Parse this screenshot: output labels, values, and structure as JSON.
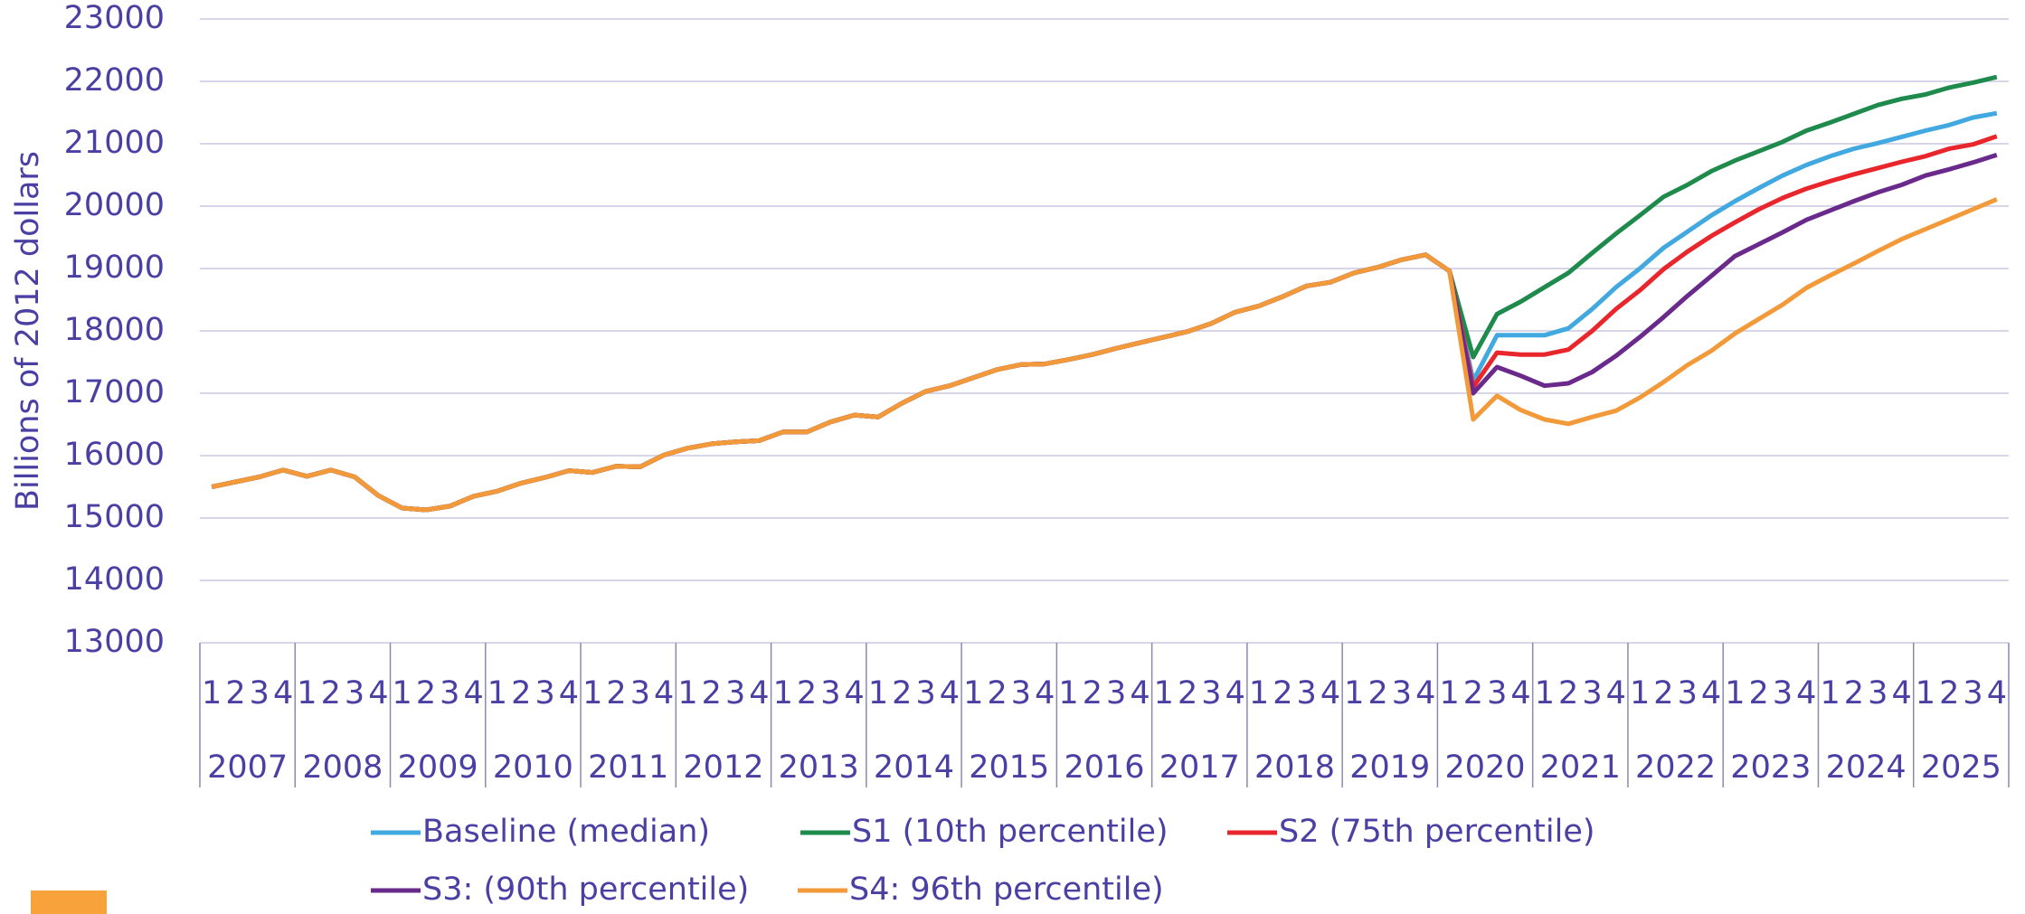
{
  "chart_data": {
    "type": "line",
    "y_label": "Billions of 2012 dollars",
    "categories": [
      "1",
      "2",
      "3",
      "4",
      "1",
      "2",
      "3",
      "4",
      "1",
      "2",
      "3",
      "4",
      "1",
      "2",
      "3",
      "4",
      "1",
      "2",
      "3",
      "4",
      "1",
      "2",
      "3",
      "4",
      "1",
      "2",
      "3",
      "4",
      "1",
      "2",
      "3",
      "4",
      "1",
      "2",
      "3",
      "4",
      "1",
      "2",
      "3",
      "4",
      "1",
      "2",
      "3",
      "4",
      "1",
      "2",
      "3",
      "4",
      "1",
      "2",
      "3",
      "4",
      "1",
      "2",
      "3",
      "4",
      "1",
      "2",
      "3",
      "4",
      "1",
      "2",
      "3",
      "4",
      "1",
      "2",
      "3",
      "4",
      "1",
      "2",
      "3",
      "4",
      "1",
      "2",
      "3",
      "4"
    ],
    "years": [
      "2007",
      "2008",
      "2009",
      "2010",
      "2011",
      "2012",
      "2013",
      "2014",
      "2015",
      "2016",
      "2017",
      "2018",
      "2019",
      "2020",
      "2021",
      "2022",
      "2023",
      "2024",
      "2025"
    ],
    "ylim": [
      13000,
      23000
    ],
    "yticks": [
      13000,
      14000,
      15000,
      16000,
      17000,
      18000,
      19000,
      20000,
      21000,
      22000,
      23000
    ],
    "grid": true,
    "series": [
      {
        "name": "Baseline (median)",
        "color": "#41a8e0",
        "values": [
          15500,
          15580,
          15660,
          15770,
          15670,
          15770,
          15660,
          15360,
          15160,
          15130,
          15190,
          15350,
          15430,
          15560,
          15650,
          15760,
          15730,
          15830,
          15820,
          16010,
          16120,
          16190,
          16220,
          16240,
          16380,
          16380,
          16540,
          16650,
          16620,
          16840,
          17030,
          17120,
          17250,
          17380,
          17460,
          17470,
          17540,
          17620,
          17720,
          17810,
          17900,
          17990,
          18120,
          18300,
          18400,
          18550,
          18720,
          18780,
          18930,
          19020,
          19140,
          19220,
          18960,
          17200,
          17930,
          17930,
          17930,
          18040,
          18350,
          18700,
          19000,
          19330,
          19590,
          19850,
          20080,
          20290,
          20490,
          20660,
          20800,
          20920,
          21010,
          21110,
          21210,
          21300,
          21420,
          21490
        ]
      },
      {
        "name": "S1 (10th percentile)",
        "color": "#1e8a4c",
        "values": [
          15500,
          15580,
          15660,
          15770,
          15670,
          15770,
          15660,
          15360,
          15160,
          15130,
          15190,
          15350,
          15430,
          15560,
          15650,
          15760,
          15730,
          15830,
          15820,
          16010,
          16120,
          16190,
          16220,
          16240,
          16380,
          16380,
          16540,
          16650,
          16620,
          16840,
          17030,
          17120,
          17250,
          17380,
          17460,
          17470,
          17540,
          17620,
          17720,
          17810,
          17900,
          17990,
          18120,
          18300,
          18400,
          18550,
          18720,
          18780,
          18930,
          19020,
          19140,
          19220,
          18960,
          17580,
          18270,
          18470,
          18700,
          18930,
          19250,
          19560,
          19850,
          20150,
          20340,
          20560,
          20730,
          20880,
          21030,
          21210,
          21340,
          21480,
          21620,
          21720,
          21790,
          21900,
          21980,
          22070
        ]
      },
      {
        "name": "S2 (75th percentile)",
        "color": "#e8262c",
        "values": [
          15500,
          15580,
          15660,
          15770,
          15670,
          15770,
          15660,
          15360,
          15160,
          15130,
          15190,
          15350,
          15430,
          15560,
          15650,
          15760,
          15730,
          15830,
          15820,
          16010,
          16120,
          16190,
          16220,
          16240,
          16380,
          16380,
          16540,
          16650,
          16620,
          16840,
          17030,
          17120,
          17250,
          17380,
          17460,
          17470,
          17540,
          17620,
          17720,
          17810,
          17900,
          17990,
          18120,
          18300,
          18400,
          18550,
          18720,
          18780,
          18930,
          19020,
          19140,
          19220,
          18960,
          17100,
          17650,
          17620,
          17620,
          17700,
          18000,
          18350,
          18650,
          18990,
          19270,
          19520,
          19740,
          19950,
          20130,
          20280,
          20400,
          20510,
          20610,
          20710,
          20800,
          20920,
          20990,
          21120
        ]
      },
      {
        "name": "S3: (90th percentile)",
        "color": "#6a2a8c",
        "values": [
          15500,
          15580,
          15660,
          15770,
          15670,
          15770,
          15660,
          15360,
          15160,
          15130,
          15190,
          15350,
          15430,
          15560,
          15650,
          15760,
          15730,
          15830,
          15820,
          16010,
          16120,
          16190,
          16220,
          16240,
          16380,
          16380,
          16540,
          16650,
          16620,
          16840,
          17030,
          17120,
          17250,
          17380,
          17460,
          17470,
          17540,
          17620,
          17720,
          17810,
          17900,
          17990,
          18120,
          18300,
          18400,
          18550,
          18720,
          18780,
          18930,
          19020,
          19140,
          19220,
          18960,
          17000,
          17420,
          17280,
          17120,
          17160,
          17340,
          17600,
          17900,
          18220,
          18560,
          18880,
          19200,
          19390,
          19580,
          19780,
          19930,
          20080,
          20220,
          20340,
          20490,
          20590,
          20700,
          20820
        ]
      },
      {
        "name": "S4: 96th percentile)",
        "color": "#f29a3a",
        "values": [
          15500,
          15580,
          15660,
          15770,
          15670,
          15770,
          15660,
          15360,
          15160,
          15130,
          15190,
          15350,
          15430,
          15560,
          15650,
          15760,
          15730,
          15830,
          15820,
          16010,
          16120,
          16190,
          16220,
          16240,
          16380,
          16380,
          16540,
          16650,
          16620,
          16840,
          17030,
          17120,
          17250,
          17380,
          17460,
          17470,
          17540,
          17620,
          17720,
          17810,
          17900,
          17990,
          18120,
          18300,
          18400,
          18550,
          18720,
          18780,
          18930,
          19020,
          19140,
          19220,
          18960,
          16580,
          16960,
          16730,
          16580,
          16510,
          16620,
          16720,
          16930,
          17180,
          17450,
          17680,
          17960,
          18190,
          18420,
          18690,
          18890,
          19080,
          19280,
          19470,
          19630,
          19790,
          19950,
          20110
        ]
      }
    ]
  }
}
